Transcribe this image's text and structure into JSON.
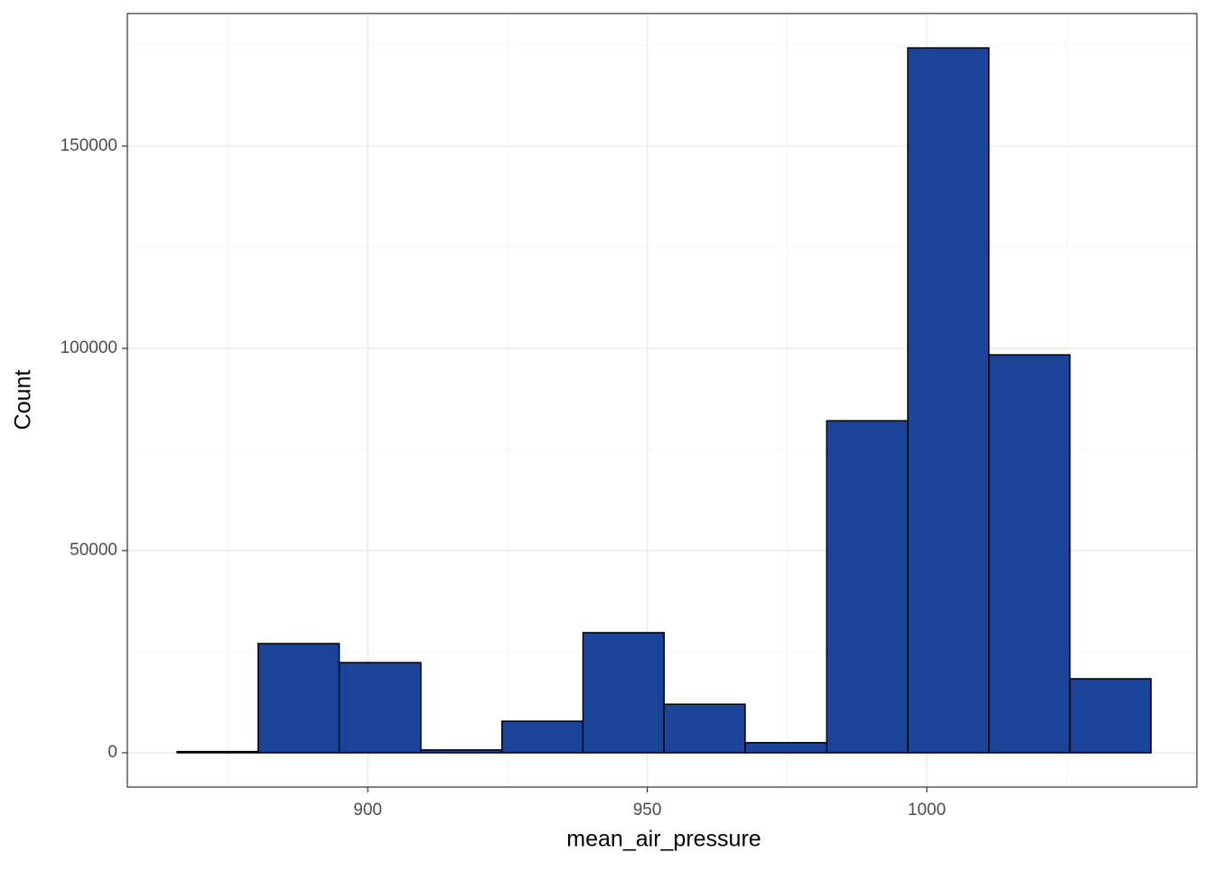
{
  "chart_data": {
    "type": "histogram",
    "x_label": "mean_air_pressure",
    "y_label": "Count",
    "bins": [
      865.9,
      880.4,
      894.9,
      909.5,
      924.0,
      938.5,
      953.0,
      967.5,
      982.1,
      996.6,
      1011.1,
      1025.6,
      1040.1
    ],
    "counts": [
      300,
      27000,
      22300,
      700,
      7800,
      29700,
      12000,
      2500,
      82100,
      174300,
      98400,
      18300
    ],
    "color": "#1a4499",
    "edge_color": "#000000",
    "xlim": [
      857.0,
      1048.3
    ],
    "xticks": [
      900,
      950,
      1000
    ],
    "xminor": [
      875,
      925,
      975,
      1025
    ],
    "ylim": [
      -8480,
      182800
    ],
    "yticks": [
      0,
      50000,
      100000,
      150000
    ],
    "yminor": [
      25000,
      75000,
      125000,
      175000
    ],
    "grid": true
  }
}
